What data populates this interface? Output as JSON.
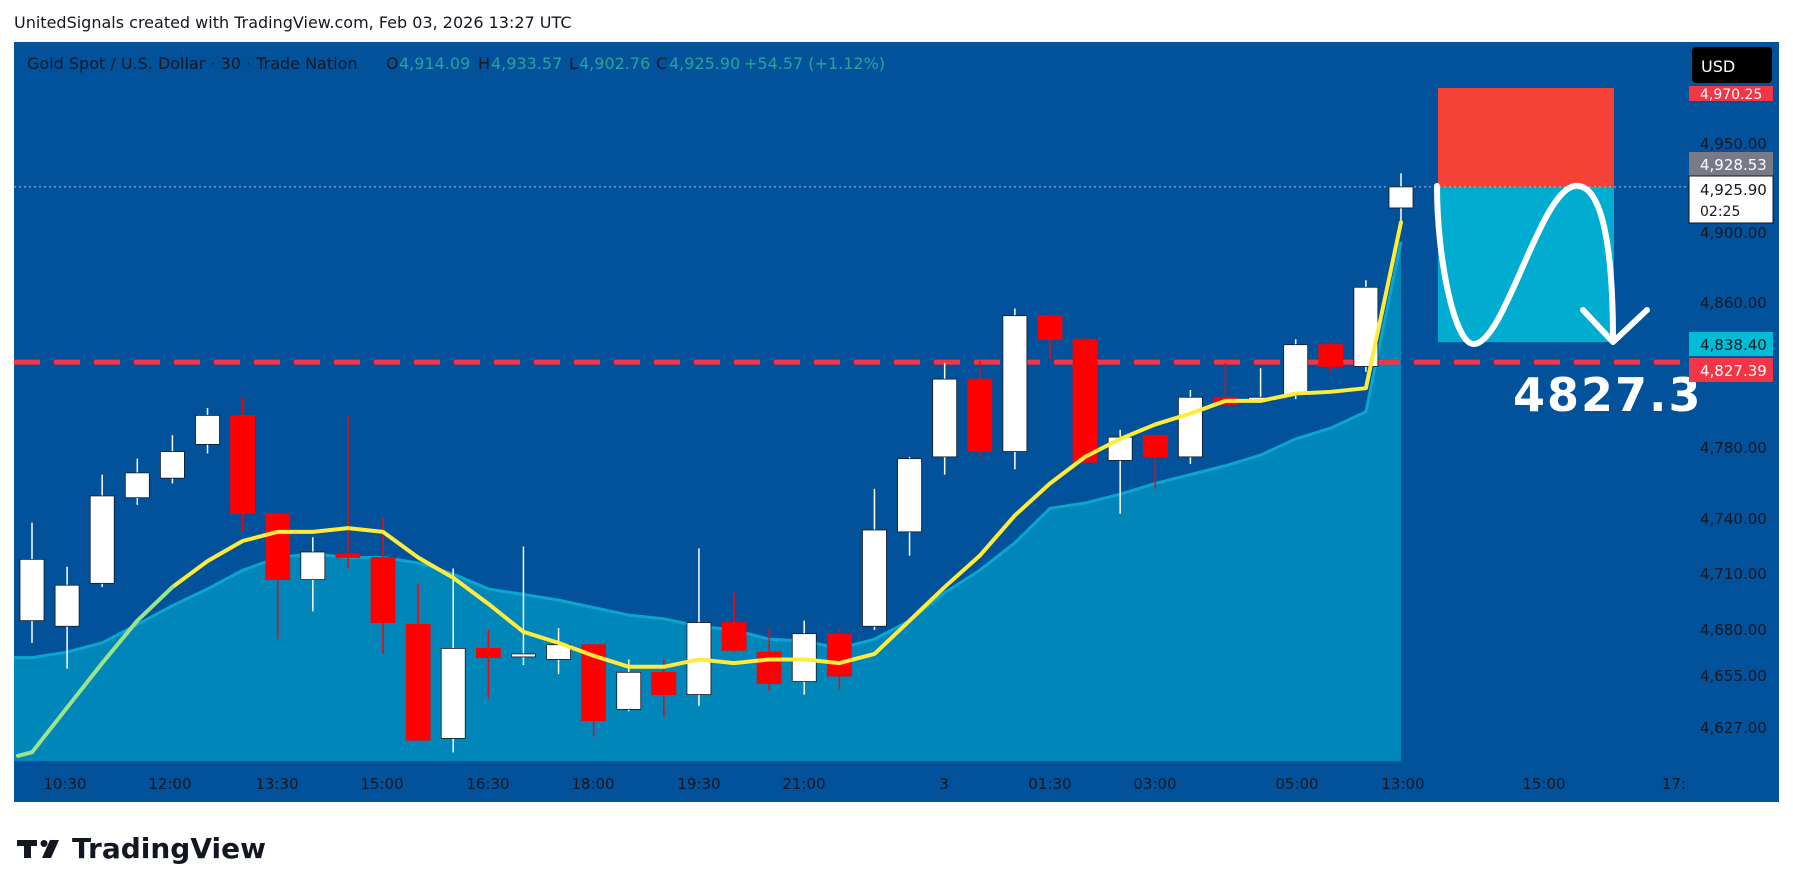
{
  "header": {
    "attribution": "UnitedSignals created with TradingView.com, Feb 03, 2026 13:27 UTC"
  },
  "legend": {
    "symbol": "Gold Spot / U.S. Dollar · 30 · Trade Nation",
    "o_label": "O",
    "o_value": "4,914.09",
    "h_label": "H",
    "h_value": "4,933.57",
    "l_label": "L",
    "l_value": "4,902.76",
    "c_label": "C",
    "c_value": "4,925.90",
    "change": "+54.57 (+1.12%)"
  },
  "currency_button": "USD",
  "target_label": "4827.3",
  "footer": {
    "brand": "TradingView"
  },
  "price_tags": {
    "top_red": "4,970.25",
    "gray": "4,928.53",
    "current": "4,925.90",
    "countdown": "02:25",
    "cyan": "4,838.40",
    "red": "4,827.39"
  },
  "colors": {
    "background": "#01529b",
    "area": "#0086b9",
    "area_line": "#0aa6d0",
    "ma": "#ffeb3b",
    "ma_tail": "#9be48a",
    "bull": "#ffffff",
    "bear": "#ff0000",
    "stop_zone": "#f44336",
    "target_zone": "#00acd0",
    "level_line": "#f23645"
  },
  "chart_data": {
    "type": "candlestick",
    "symbol": "Gold Spot / U.S. Dollar",
    "timeframe": "30",
    "x_ticks": [
      "10:30",
      "12:00",
      "13:30",
      "15:00",
      "16:30",
      "18:00",
      "19:30",
      "21:00",
      "3",
      "01:30",
      "03:00",
      "05:00",
      "13:00",
      "15:00",
      "17:"
    ],
    "y_ticks": [
      4627,
      4655,
      4680,
      4710,
      4740,
      4780,
      4860,
      4900,
      4950
    ],
    "y_tick_labels": [
      "4,627.00",
      "4,655.00",
      "4,680.00",
      "4,710.00",
      "4,740.00",
      "4,780.00",
      "4,860.00",
      "4,900.00",
      "4,950.00"
    ],
    "ylim": [
      4608,
      4980
    ],
    "candles": [
      {
        "o": 4685,
        "h": 4738,
        "l": 4673,
        "c": 4718
      },
      {
        "o": 4682,
        "h": 4714,
        "l": 4659,
        "c": 4704
      },
      {
        "o": 4705,
        "h": 4765,
        "l": 4703,
        "c": 4753
      },
      {
        "o": 4752,
        "h": 4774,
        "l": 4748,
        "c": 4766
      },
      {
        "o": 4763,
        "h": 4787,
        "l": 4760,
        "c": 4778
      },
      {
        "o": 4782,
        "h": 4802,
        "l": 4777,
        "c": 4798
      },
      {
        "o": 4798,
        "h": 4808,
        "l": 4733,
        "c": 4743
      },
      {
        "o": 4743,
        "h": 4744,
        "l": 4675,
        "c": 4707
      },
      {
        "o": 4707,
        "h": 4730,
        "l": 4690,
        "c": 4722
      },
      {
        "o": 4721,
        "h": 4798,
        "l": 4713,
        "c": 4719
      },
      {
        "o": 4719,
        "h": 4741,
        "l": 4667,
        "c": 4684
      },
      {
        "o": 4683,
        "h": 4705,
        "l": 4620,
        "c": 4620
      },
      {
        "o": 4621,
        "h": 4713,
        "l": 4613,
        "c": 4670
      },
      {
        "o": 4670,
        "h": 4680,
        "l": 4643,
        "c": 4665
      },
      {
        "o": 4666,
        "h": 4725,
        "l": 4661,
        "c": 4667
      },
      {
        "o": 4664,
        "h": 4681,
        "l": 4656,
        "c": 4672
      },
      {
        "o": 4672,
        "h": 4672,
        "l": 4622,
        "c": 4631
      },
      {
        "o": 4637,
        "h": 4664,
        "l": 4636,
        "c": 4657
      },
      {
        "o": 4657,
        "h": 4664,
        "l": 4633,
        "c": 4645
      },
      {
        "o": 4645,
        "h": 4724,
        "l": 4639,
        "c": 4684
      },
      {
        "o": 4684,
        "h": 4700,
        "l": 4668,
        "c": 4669
      },
      {
        "o": 4668,
        "h": 4681,
        "l": 4647,
        "c": 4651
      },
      {
        "o": 4652,
        "h": 4685,
        "l": 4645,
        "c": 4678
      },
      {
        "o": 4678,
        "h": 4681,
        "l": 4648,
        "c": 4655
      },
      {
        "o": 4682,
        "h": 4757,
        "l": 4680,
        "c": 4734
      },
      {
        "o": 4733,
        "h": 4775,
        "l": 4720,
        "c": 4774
      },
      {
        "o": 4775,
        "h": 4827,
        "l": 4765,
        "c": 4818
      },
      {
        "o": 4818,
        "h": 4828,
        "l": 4775,
        "c": 4778
      },
      {
        "o": 4778,
        "h": 4857,
        "l": 4768,
        "c": 4853
      },
      {
        "o": 4853,
        "h": 4854,
        "l": 4829,
        "c": 4840
      },
      {
        "o": 4840,
        "h": 4841,
        "l": 4772,
        "c": 4772
      },
      {
        "o": 4773,
        "h": 4790,
        "l": 4743,
        "c": 4786
      },
      {
        "o": 4787,
        "h": 4787,
        "l": 4757,
        "c": 4775
      },
      {
        "o": 4775,
        "h": 4812,
        "l": 4771,
        "c": 4808
      },
      {
        "o": 4808,
        "h": 4827,
        "l": 4804,
        "c": 4804
      },
      {
        "o": 4806,
        "h": 4824,
        "l": 4805,
        "c": 4808
      },
      {
        "o": 4809,
        "h": 4840,
        "l": 4807,
        "c": 4837
      },
      {
        "o": 4837,
        "h": 4839,
        "l": 4822,
        "c": 4825
      },
      {
        "o": 4825,
        "h": 4873,
        "l": 4822,
        "c": 4869
      },
      {
        "o": 4914.09,
        "h": 4933.57,
        "l": 4902.76,
        "c": 4925.9
      }
    ],
    "ma": [
      4613,
      4638,
      4662,
      4685,
      4703,
      4717,
      4728,
      4733,
      4733,
      4735,
      4733,
      4719,
      4708,
      4694,
      4679,
      4673,
      4666,
      4660,
      4660,
      4664,
      4662,
      4664,
      4664,
      4662,
      4667,
      4685,
      4703,
      4720,
      4742,
      4760,
      4775,
      4785,
      4793,
      4799,
      4806,
      4806,
      4810,
      4811,
      4813,
      4906
    ],
    "baseline": [
      4665,
      4668,
      4673,
      4683,
      4693,
      4702,
      4712,
      4719,
      4721,
      4719,
      4719,
      4716,
      4710,
      4702,
      4699,
      4696,
      4692,
      4688,
      4686,
      4682,
      4680,
      4675,
      4674,
      4670,
      4675,
      4685,
      4700,
      4712,
      4727,
      4746,
      4749,
      4754,
      4760,
      4765,
      4770,
      4776,
      4785,
      4791,
      4800,
      4895
    ],
    "position": {
      "type": "short",
      "stop_top": 4981,
      "entry": 4925.9,
      "target": 4838.4
    },
    "level_line": 4827.39,
    "annotation": "4827.3",
    "last_price": 4925.9
  }
}
